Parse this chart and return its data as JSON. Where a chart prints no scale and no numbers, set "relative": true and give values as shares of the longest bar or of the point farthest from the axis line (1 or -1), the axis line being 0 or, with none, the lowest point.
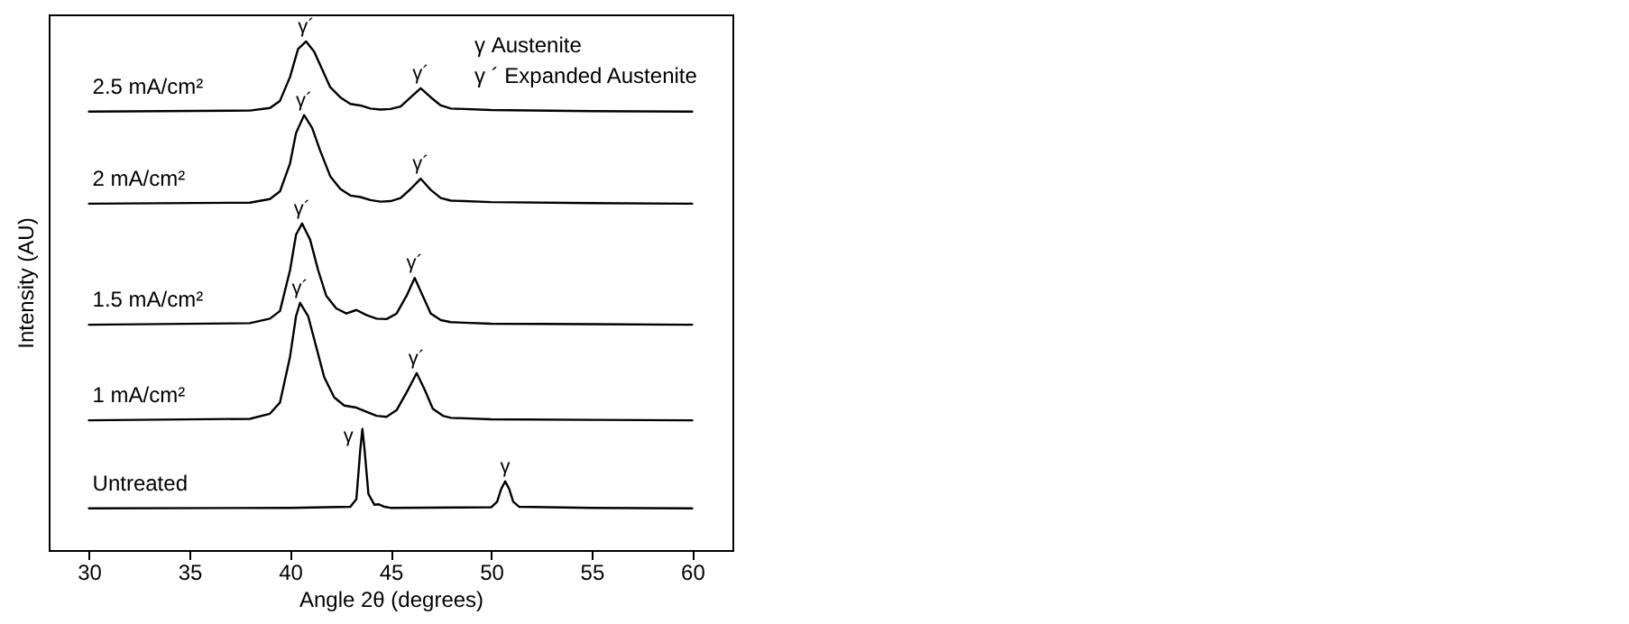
{
  "chart_data": {
    "type": "line",
    "relative": true,
    "xlabel": "Angle 2θ (degrees)",
    "ylabel": "Intensity (AU)",
    "xlim": [
      28,
      62
    ],
    "xticks": [
      30,
      35,
      40,
      45,
      50,
      55,
      60
    ],
    "series": [
      {
        "name": "2.5 mA/cm²",
        "color": "#000000",
        "x": [
          30,
          38,
          39,
          39.5,
          40,
          40.4,
          40.8,
          41.2,
          41.6,
          42,
          42.5,
          43,
          43.5,
          44,
          44.5,
          45,
          45.5,
          46,
          46.5,
          47,
          47.5,
          48,
          50,
          55,
          60
        ],
        "values": [
          0.862,
          0.864,
          0.869,
          0.883,
          0.93,
          0.985,
          1.0,
          0.98,
          0.945,
          0.91,
          0.89,
          0.877,
          0.874,
          0.868,
          0.866,
          0.867,
          0.872,
          0.89,
          0.908,
          0.89,
          0.874,
          0.868,
          0.865,
          0.863,
          0.862
        ]
      },
      {
        "name": "2 mA/cm²",
        "color": "#000000",
        "x": [
          30,
          38,
          39,
          39.5,
          40,
          40.3,
          40.7,
          41.1,
          41.5,
          42,
          42.5,
          43,
          43.5,
          44,
          44.5,
          45,
          45.5,
          46,
          46.5,
          47,
          47.5,
          48,
          50,
          55,
          60
        ],
        "values": [
          0.681,
          0.683,
          0.69,
          0.705,
          0.76,
          0.82,
          0.855,
          0.83,
          0.785,
          0.735,
          0.71,
          0.697,
          0.694,
          0.688,
          0.685,
          0.686,
          0.692,
          0.71,
          0.73,
          0.708,
          0.692,
          0.687,
          0.684,
          0.682,
          0.681
        ]
      },
      {
        "name": "1.5 mA/cm²",
        "color": "#000000",
        "x": [
          30,
          38,
          39,
          39.5,
          40,
          40.3,
          40.6,
          41,
          41.4,
          41.8,
          42.3,
          42.8,
          43.3,
          43.8,
          44.3,
          44.8,
          45.3,
          45.8,
          46.2,
          46.6,
          47,
          47.5,
          48,
          50,
          55,
          60
        ],
        "values": [
          0.443,
          0.446,
          0.455,
          0.47,
          0.55,
          0.62,
          0.642,
          0.61,
          0.55,
          0.5,
          0.475,
          0.465,
          0.472,
          0.462,
          0.455,
          0.454,
          0.465,
          0.5,
          0.535,
          0.5,
          0.465,
          0.452,
          0.448,
          0.445,
          0.444,
          0.443
        ]
      },
      {
        "name": "1 mA/cm²",
        "color": "#000000",
        "x": [
          30,
          38,
          39,
          39.5,
          40,
          40.3,
          40.5,
          40.9,
          41.3,
          41.7,
          42.2,
          42.7,
          43.3,
          43.8,
          44.3,
          44.8,
          45.3,
          45.8,
          46.3,
          46.7,
          47.1,
          47.6,
          48,
          50,
          55,
          60
        ],
        "values": [
          0.255,
          0.258,
          0.268,
          0.29,
          0.38,
          0.46,
          0.486,
          0.46,
          0.4,
          0.34,
          0.3,
          0.284,
          0.28,
          0.272,
          0.264,
          0.262,
          0.275,
          0.31,
          0.348,
          0.315,
          0.278,
          0.264,
          0.26,
          0.257,
          0.256,
          0.255
        ]
      },
      {
        "name": "Untreated",
        "color": "#000000",
        "x": [
          30,
          40,
          43,
          43.3,
          43.5,
          43.6,
          43.7,
          43.9,
          44.2,
          44.4,
          44.7,
          45,
          50,
          50.3,
          50.5,
          50.7,
          50.9,
          51.1,
          51.4,
          55,
          60
        ],
        "values": [
          0.082,
          0.083,
          0.085,
          0.1,
          0.2,
          0.238,
          0.2,
          0.11,
          0.089,
          0.09,
          0.085,
          0.083,
          0.084,
          0.095,
          0.12,
          0.135,
          0.12,
          0.095,
          0.085,
          0.083,
          0.082
        ]
      }
    ],
    "annotations": [
      "γ  Austenite",
      "γ ´ Expanded Austenite",
      {
        "text": "γ´",
        "x": 40.8,
        "y": 1.0
      },
      {
        "text": "γ´",
        "x": 46.5,
        "y": 0.908
      },
      {
        "text": "γ´",
        "x": 40.7,
        "y": 0.855
      },
      {
        "text": "γ´",
        "x": 46.5,
        "y": 0.73
      },
      {
        "text": "γ´",
        "x": 40.6,
        "y": 0.642
      },
      {
        "text": "γ´",
        "x": 46.2,
        "y": 0.535
      },
      {
        "text": "γ´",
        "x": 40.5,
        "y": 0.486
      },
      {
        "text": "γ´",
        "x": 46.3,
        "y": 0.348
      },
      {
        "text": "γ",
        "x": 43.6,
        "y": 0.238
      },
      {
        "text": "γ",
        "x": 50.7,
        "y": 0.135
      }
    ]
  }
}
